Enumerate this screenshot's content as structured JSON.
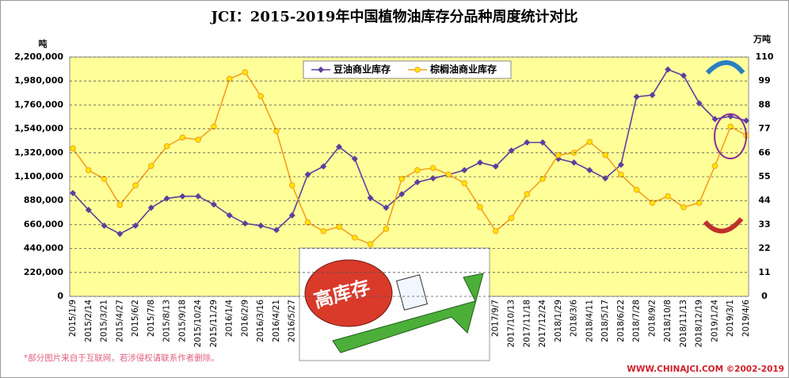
{
  "chart_data": {
    "type": "line",
    "title": "JCI：2015-2019年中国植物油库存分品种周度统计对比",
    "y_label": "吨",
    "y2_label": "万吨",
    "categories": [
      "2015/1/9",
      "2015/2/14",
      "2015/3/21",
      "2015/4/27",
      "2015/6/2",
      "2015/7/8",
      "2015/8/13",
      "2015/9/18",
      "2015/10/24",
      "2015/11/29",
      "2016/1/4",
      "2016/2/9",
      "2016/3/16",
      "2016/4/21",
      "2016/5/27",
      null,
      null,
      null,
      null,
      null,
      null,
      null,
      null,
      null,
      null,
      null,
      null,
      "2017/9/7",
      "2017/10/13",
      "2017/11/18",
      "2017/12/24",
      "2018/1/29",
      "2018/3/6",
      "2018/4/11",
      "2018/5/17",
      "2018/6/22",
      "2018/7/28",
      "2018/9/2",
      "2018/10/8",
      "2018/11/13",
      "2018/12/19",
      "2019/1/24",
      "2019/3/1",
      "2019/4/6"
    ],
    "series": [
      {
        "name": "豆油商业库存",
        "color": "#5b3f9e",
        "marker": "diamond",
        "values": [
          950000,
          795000,
          650000,
          575000,
          650000,
          815000,
          900000,
          920000,
          920000,
          845000,
          745000,
          670000,
          650000,
          610000,
          745000,
          1120000,
          1195000,
          1375000,
          1265000,
          905000,
          815000,
          940000,
          1050000,
          1085000,
          1120000,
          1160000,
          1230000,
          1195000,
          1340000,
          1415000,
          1415000,
          1265000,
          1230000,
          1160000,
          1085000,
          1210000,
          1835000,
          1850000,
          2085000,
          2030000,
          1775000,
          1630000,
          1655000,
          1615000
        ]
      },
      {
        "name": "棕榈油商业库存",
        "color": "#f5a01a",
        "marker": "circle",
        "axis": "y2",
        "values": [
          68,
          58,
          54,
          42,
          51,
          60,
          69,
          73,
          72,
          78,
          100,
          103,
          92,
          76,
          51,
          34,
          30,
          32,
          27,
          24,
          31,
          54,
          58,
          59,
          56,
          52,
          41,
          30,
          36,
          47,
          54,
          65,
          66,
          71,
          65,
          56,
          49,
          43,
          46,
          41,
          43,
          60,
          78,
          74
        ]
      }
    ],
    "ylim": [
      0,
      2200000
    ],
    "yticks": [
      0,
      {
        "value": 220000,
        "label": "220,000"
      },
      {
        "value": 440000,
        "label": "440,000"
      },
      {
        "value": 660000,
        "label": "660,000"
      },
      {
        "value": 880000,
        "label": "880,000"
      },
      {
        "value": 1100000,
        "label": "1,100,000"
      },
      {
        "value": 1320000,
        "label": "1,320,000"
      },
      {
        "value": 1540000,
        "label": "1,540,000"
      },
      {
        "value": 1760000,
        "label": "1,760,000"
      },
      {
        "value": 1980000,
        "label": "1,980,000"
      },
      {
        "value": 2200000,
        "label": "2,200,000"
      }
    ],
    "y2lim": [
      0,
      110
    ],
    "y2ticks": [
      0,
      11,
      22,
      33,
      44,
      55,
      66,
      77,
      88,
      99,
      110
    ],
    "grid": true,
    "plot_background": "#ffff99",
    "annotation": "高库存",
    "footnote": "*部分图片来自于互联网，若涉侵权请联系作者删除。",
    "source": "WWW.CHINAJCI.COM ©2002-2019"
  }
}
